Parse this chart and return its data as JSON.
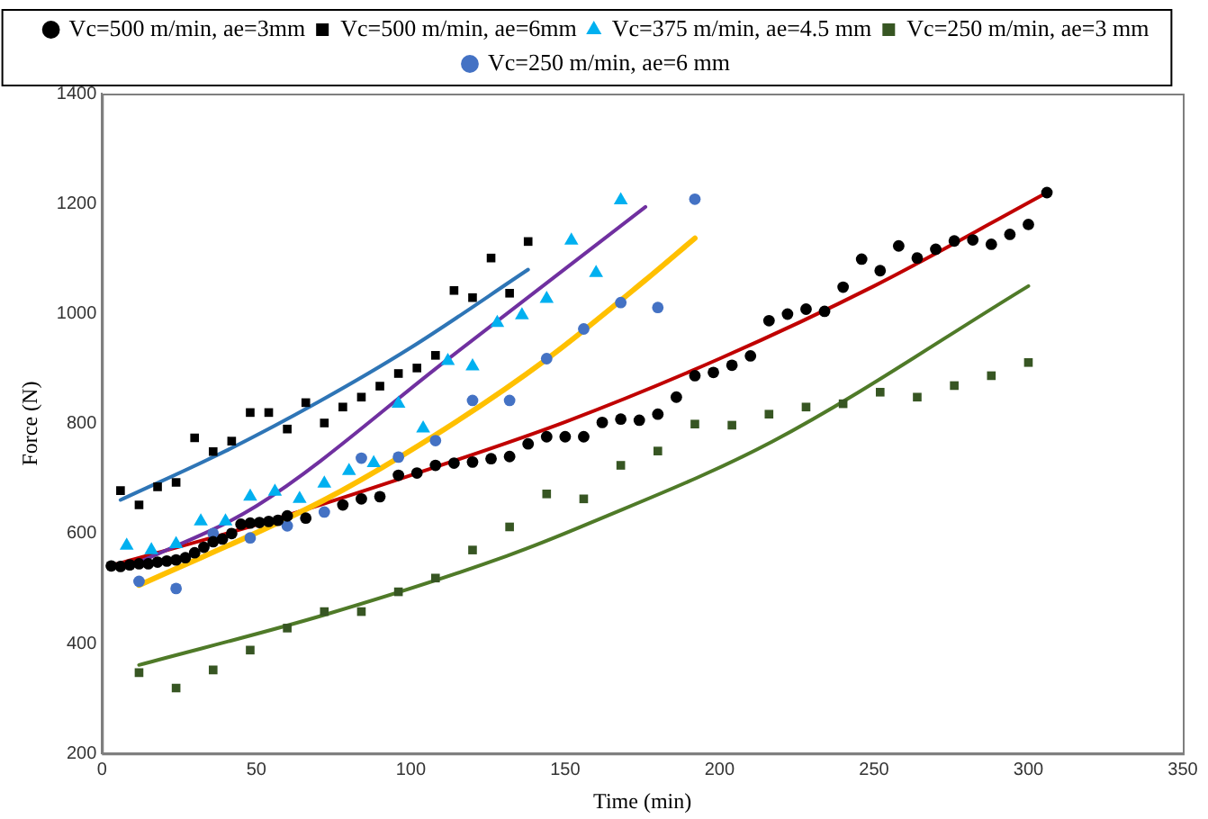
{
  "chart_data": {
    "type": "scatter",
    "xlabel": "Time (min)",
    "ylabel": "Force (N)",
    "xlim": [
      0,
      350
    ],
    "xticks": [
      0,
      50,
      100,
      150,
      200,
      250,
      300,
      350
    ],
    "ylim": [
      200,
      1400
    ],
    "yticks": [
      200,
      400,
      600,
      800,
      1000,
      1200,
      1400
    ],
    "grid": false,
    "legend": "top",
    "series": [
      {
        "name": "Vc=500 m/min, ae=3mm",
        "color": "#000000",
        "marker": "circle",
        "x": [
          3,
          6,
          9,
          12,
          15,
          18,
          21,
          24,
          27,
          30,
          33,
          36,
          39,
          42,
          45,
          48,
          51,
          54,
          57,
          60,
          66,
          78,
          84,
          90,
          96,
          102,
          108,
          114,
          120,
          126,
          132,
          138,
          144,
          150,
          156,
          162,
          168,
          174,
          180,
          186,
          192,
          198,
          204,
          210,
          216,
          222,
          228,
          234,
          240,
          246,
          252,
          258,
          264,
          270,
          276,
          282,
          288,
          294,
          300,
          306
        ],
        "values": [
          541,
          540,
          543,
          545,
          545,
          548,
          550,
          552,
          556,
          565,
          575,
          585,
          590,
          600,
          617,
          619,
          620,
          622,
          624,
          632,
          628,
          652,
          663,
          667,
          706,
          710,
          724,
          728,
          730,
          736,
          740,
          763,
          776,
          776,
          776,
          802,
          808,
          806,
          817,
          848,
          887,
          893,
          906,
          923,
          987,
          999,
          1008,
          1004,
          1048,
          1099,
          1078,
          1123,
          1101,
          1117,
          1132,
          1134,
          1126,
          1144,
          1162,
          1220
        ]
      },
      {
        "name": "Vc=500 m/min, ae=6mm",
        "color": "#000000",
        "marker": "square",
        "x": [
          6,
          12,
          18,
          24,
          30,
          36,
          42,
          48,
          54,
          60,
          66,
          72,
          78,
          84,
          90,
          96,
          102,
          108,
          114,
          120,
          126,
          132,
          138
        ],
        "values": [
          678,
          652,
          685,
          693,
          774,
          749,
          768,
          820,
          820,
          790,
          838,
          801,
          830,
          848,
          868,
          891,
          901,
          924,
          1042,
          1029,
          1101,
          1037,
          1131
        ]
      },
      {
        "name": "Vc=375 m/min, ae=4.5 mm",
        "color": "#00b0f0",
        "marker": "triangle",
        "x": [
          8,
          16,
          24,
          32,
          40,
          48,
          56,
          64,
          72,
          80,
          88,
          96,
          104,
          112,
          120,
          128,
          136,
          144,
          152,
          160,
          168
        ],
        "values": [
          578,
          570,
          581,
          622,
          622,
          667,
          676,
          663,
          691,
          714,
          728,
          836,
          791,
          914,
          904,
          983,
          997,
          1027,
          1133,
          1074,
          1206
        ]
      },
      {
        "name": "Vc=250 m/min, ae=3 mm",
        "color": "#375623",
        "marker": "square",
        "x": [
          12,
          24,
          36,
          48,
          60,
          72,
          84,
          96,
          108,
          120,
          132,
          144,
          156,
          168,
          180,
          192,
          204,
          216,
          228,
          240,
          252,
          264,
          276,
          288,
          300
        ],
        "values": [
          347,
          319,
          352,
          388,
          428,
          458,
          458,
          494,
          519,
          570,
          612,
          672,
          663,
          724,
          750,
          799,
          797,
          817,
          830,
          836,
          857,
          848,
          869,
          887,
          911
        ]
      },
      {
        "name": "Vc=250 m/min, ae=6 mm",
        "color": "#4472c4",
        "marker": "circle",
        "x": [
          12,
          24,
          36,
          48,
          60,
          72,
          84,
          96,
          108,
          120,
          132,
          144,
          156,
          168,
          180,
          192
        ],
        "values": [
          513,
          500,
          600,
          592,
          614,
          639,
          737,
          739,
          769,
          842,
          842,
          918,
          972,
          1020,
          1011,
          1208
        ]
      },
      {
        "type": "line",
        "color": "#2e75b6",
        "marker": "none",
        "x": [
          6,
          40,
          70,
          100,
          138
        ],
        "values": [
          661,
          750,
          839,
          938,
          1080
        ]
      },
      {
        "type": "line",
        "color": "#7030a0",
        "marker": "none",
        "x": [
          9,
          50,
          112,
          176
        ],
        "values": [
          540,
          650,
          917,
          1194
        ]
      },
      {
        "type": "line",
        "color": "#ffc000",
        "marker": "none",
        "x": [
          12,
          72,
          111,
          144,
          176,
          192
        ],
        "values": [
          506,
          661,
          790,
          917,
          1061,
          1137
        ]
      },
      {
        "type": "line",
        "color": "#c00000",
        "marker": "none",
        "x": [
          2,
          50,
          100,
          150,
          200,
          250,
          306
        ],
        "values": [
          540,
          616,
          706,
          803,
          918,
          1050,
          1220
        ]
      },
      {
        "type": "line",
        "color": "#4f7a28",
        "marker": "none",
        "x": [
          12,
          72,
          131,
          158,
          217,
          300
        ],
        "values": [
          361,
          452,
          559,
          619,
          767,
          1050
        ]
      }
    ]
  }
}
